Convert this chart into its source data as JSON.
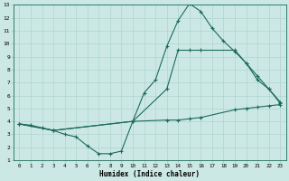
{
  "title": "",
  "xlabel": "Humidex (Indice chaleur)",
  "bg_color": "#cce8e4",
  "grid_color": "#aed4cf",
  "line_color": "#1a6b5a",
  "xlim": [
    -0.5,
    23.5
  ],
  "ylim": [
    1,
    13
  ],
  "xticks": [
    0,
    1,
    2,
    3,
    4,
    5,
    6,
    7,
    8,
    9,
    10,
    11,
    12,
    13,
    14,
    15,
    16,
    17,
    18,
    19,
    20,
    21,
    22,
    23
  ],
  "yticks": [
    1,
    2,
    3,
    4,
    5,
    6,
    7,
    8,
    9,
    10,
    11,
    12,
    13
  ],
  "line1_x": [
    0,
    1,
    2,
    3,
    4,
    5,
    6,
    7,
    8,
    9,
    10,
    11,
    12,
    13,
    14,
    15,
    16,
    17,
    18,
    19,
    20,
    21,
    22,
    23
  ],
  "line1_y": [
    3.8,
    3.7,
    3.5,
    3.3,
    3.0,
    2.8,
    2.1,
    1.5,
    1.5,
    1.7,
    4.0,
    6.2,
    7.2,
    9.8,
    11.8,
    13.1,
    12.5,
    11.2,
    10.2,
    9.4,
    8.5,
    7.2,
    6.5,
    5.4
  ],
  "line2_x": [
    0,
    3,
    10,
    13,
    14,
    15,
    16,
    19,
    20,
    21,
    22,
    23
  ],
  "line2_y": [
    3.8,
    3.3,
    4.0,
    6.5,
    9.5,
    9.5,
    9.5,
    9.5,
    8.5,
    7.5,
    6.5,
    5.5
  ],
  "line3_x": [
    0,
    3,
    10,
    13,
    14,
    15,
    16,
    19,
    20,
    21,
    22,
    23
  ],
  "line3_y": [
    3.8,
    3.3,
    4.0,
    4.1,
    4.1,
    4.2,
    4.3,
    4.9,
    5.0,
    5.1,
    5.2,
    5.3
  ]
}
